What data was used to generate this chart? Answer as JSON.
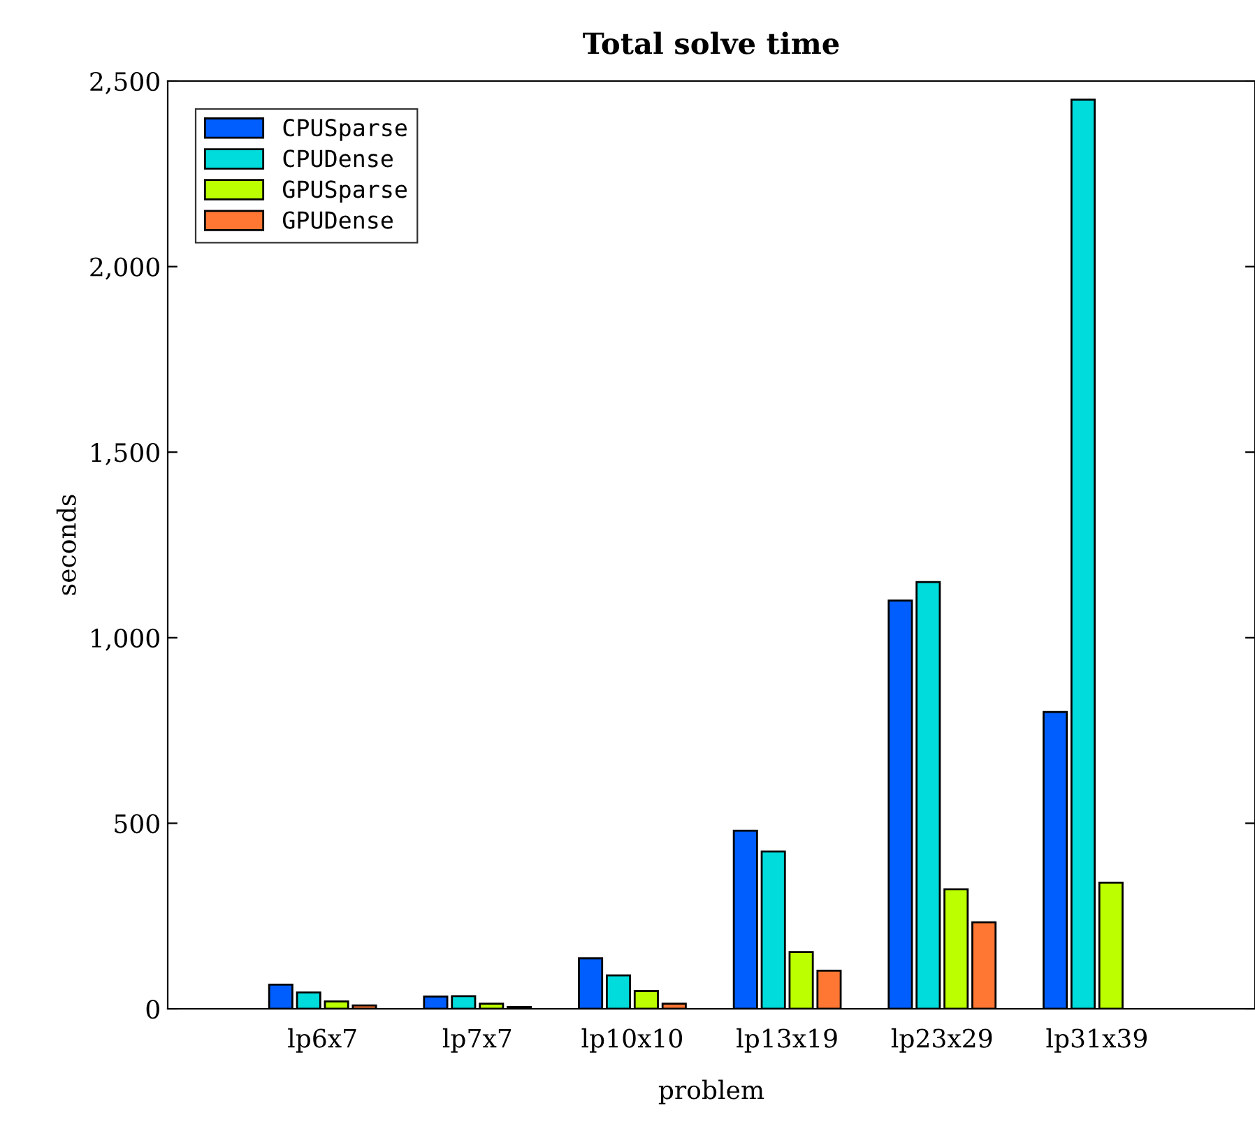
{
  "chart_data": {
    "type": "bar",
    "title": "Total solve time",
    "xlabel": "problem",
    "ylabel": "seconds",
    "categories": [
      "lp6x7",
      "lp7x7",
      "lp10x10",
      "lp13x19",
      "lp23x29",
      "lp31x39"
    ],
    "series": [
      {
        "name": "CPUSparse",
        "color": "#005eff",
        "values": [
          65,
          33,
          136,
          480,
          1100,
          800
        ]
      },
      {
        "name": "CPUDense",
        "color": "#00dcdc",
        "values": [
          44,
          34,
          90,
          424,
          1150,
          2450
        ]
      },
      {
        "name": "GPUSparse",
        "color": "#bbff00",
        "values": [
          20,
          14,
          48,
          153,
          322,
          340
        ]
      },
      {
        "name": "GPUDense",
        "color": "#ff7733",
        "values": [
          9,
          5,
          14,
          103,
          233,
          null
        ]
      }
    ],
    "ylim": [
      0,
      2500
    ],
    "yticks": [
      0,
      500,
      {
        "value": 1000,
        "label": "1,000"
      },
      {
        "value": 1500,
        "label": "1,500"
      },
      {
        "value": 2000,
        "label": "2,000"
      },
      {
        "value": 2500,
        "label": "2,500"
      }
    ],
    "grid": false,
    "legend": "top left"
  }
}
